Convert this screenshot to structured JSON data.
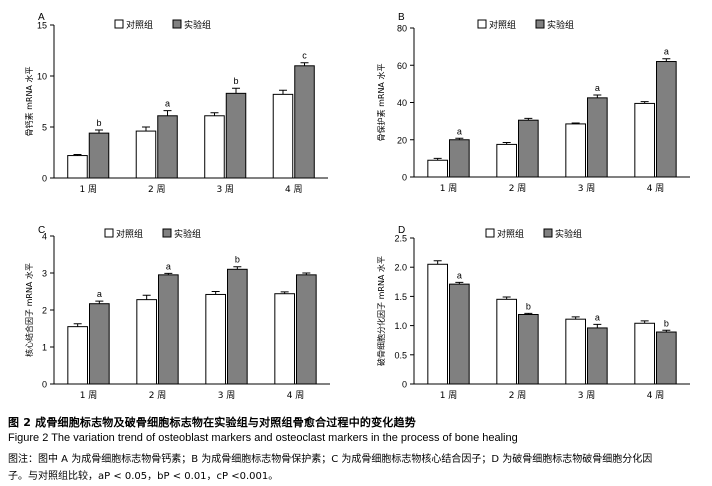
{
  "colors": {
    "control": "#ffffff",
    "experimental": "#808080",
    "stroke": "#000000"
  },
  "legend": {
    "control": "对照组",
    "experimental": "实验组"
  },
  "chart_data": [
    {
      "type": "bar",
      "panel": "A",
      "categories": [
        "1 周",
        "2 周",
        "3 周",
        "4 周"
      ],
      "ylabel": "骨钙素 mRNA 水平",
      "ylim": [
        0,
        15
      ],
      "yticks": [
        0,
        5,
        10,
        15
      ],
      "legend_position": "top-center",
      "series": [
        {
          "name": "对照组",
          "values": [
            2.2,
            4.6,
            6.1,
            8.2
          ],
          "errors": [
            0.1,
            0.4,
            0.3,
            0.4
          ]
        },
        {
          "name": "实验组",
          "values": [
            4.4,
            6.1,
            8.3,
            11.0
          ],
          "errors": [
            0.3,
            0.5,
            0.5,
            0.3
          ],
          "labels": [
            "b",
            "a",
            "b",
            "c"
          ]
        }
      ]
    },
    {
      "type": "bar",
      "panel": "B",
      "categories": [
        "1 周",
        "2 周",
        "3 周",
        "4 周"
      ],
      "ylabel": "骨保护素 mRNA 水平",
      "ylim": [
        0,
        80
      ],
      "yticks": [
        0,
        20,
        40,
        60,
        80
      ],
      "legend_position": "top-center",
      "series": [
        {
          "name": "对照组",
          "values": [
            9,
            17.5,
            28.5,
            39.5
          ],
          "errors": [
            1,
            1,
            0.5,
            1
          ]
        },
        {
          "name": "实验组",
          "values": [
            20,
            30.5,
            42.5,
            62
          ],
          "errors": [
            0.8,
            1,
            1.5,
            1.5
          ],
          "labels": [
            "a",
            "",
            "a",
            "a"
          ]
        }
      ]
    },
    {
      "type": "bar",
      "panel": "C",
      "categories": [
        "1 周",
        "2 周",
        "3 周",
        "4 周"
      ],
      "ylabel": "核心结合因子 mRNA 水平",
      "ylim": [
        0,
        4
      ],
      "yticks": [
        0,
        1,
        2,
        3,
        4
      ],
      "legend_position": "top-center",
      "series": [
        {
          "name": "对照组",
          "values": [
            1.55,
            2.28,
            2.42,
            2.44
          ],
          "errors": [
            0.08,
            0.12,
            0.08,
            0.05
          ]
        },
        {
          "name": "实验组",
          "values": [
            2.17,
            2.95,
            3.1,
            2.95
          ],
          "errors": [
            0.07,
            0.04,
            0.07,
            0.05
          ],
          "labels": [
            "a",
            "a",
            "b",
            ""
          ]
        }
      ]
    },
    {
      "type": "bar",
      "panel": "D",
      "categories": [
        "1 周",
        "2 周",
        "3 周",
        "4 周"
      ],
      "ylabel": "破骨细胞分化因子 mRNA 水平",
      "ylim": [
        0,
        2.5
      ],
      "yticks": [
        "0",
        "0.5",
        "1.0",
        "1.5",
        "2.0",
        "2.5"
      ],
      "legend_position": "top-center",
      "series": [
        {
          "name": "对照组",
          "values": [
            2.05,
            1.45,
            1.11,
            1.04
          ],
          "errors": [
            0.06,
            0.04,
            0.04,
            0.04
          ]
        },
        {
          "name": "实验组",
          "values": [
            1.71,
            1.19,
            0.96,
            0.89
          ],
          "errors": [
            0.03,
            0.02,
            0.06,
            0.03
          ],
          "labels": [
            "a",
            "b",
            "a",
            "b"
          ]
        }
      ]
    }
  ],
  "caption": {
    "zh": "图 2   成骨细胞标志物及破骨细胞标志物在实验组与对照组骨愈合过程中的变化趋势",
    "en": "Figure 2   The variation trend of osteoblast markers and osteoclast markers in the process of bone healing",
    "note_line1": "图注：图中 A 为成骨细胞标志物骨钙素；B 为成骨细胞标志物骨保护素；C 为成骨细胞标志物核心结合因子；D 为破骨细胞标志物破骨细胞分化因",
    "note_line2": "子。与对照组比较，aP < 0.05，bP < 0.01，cP <0.001。"
  }
}
